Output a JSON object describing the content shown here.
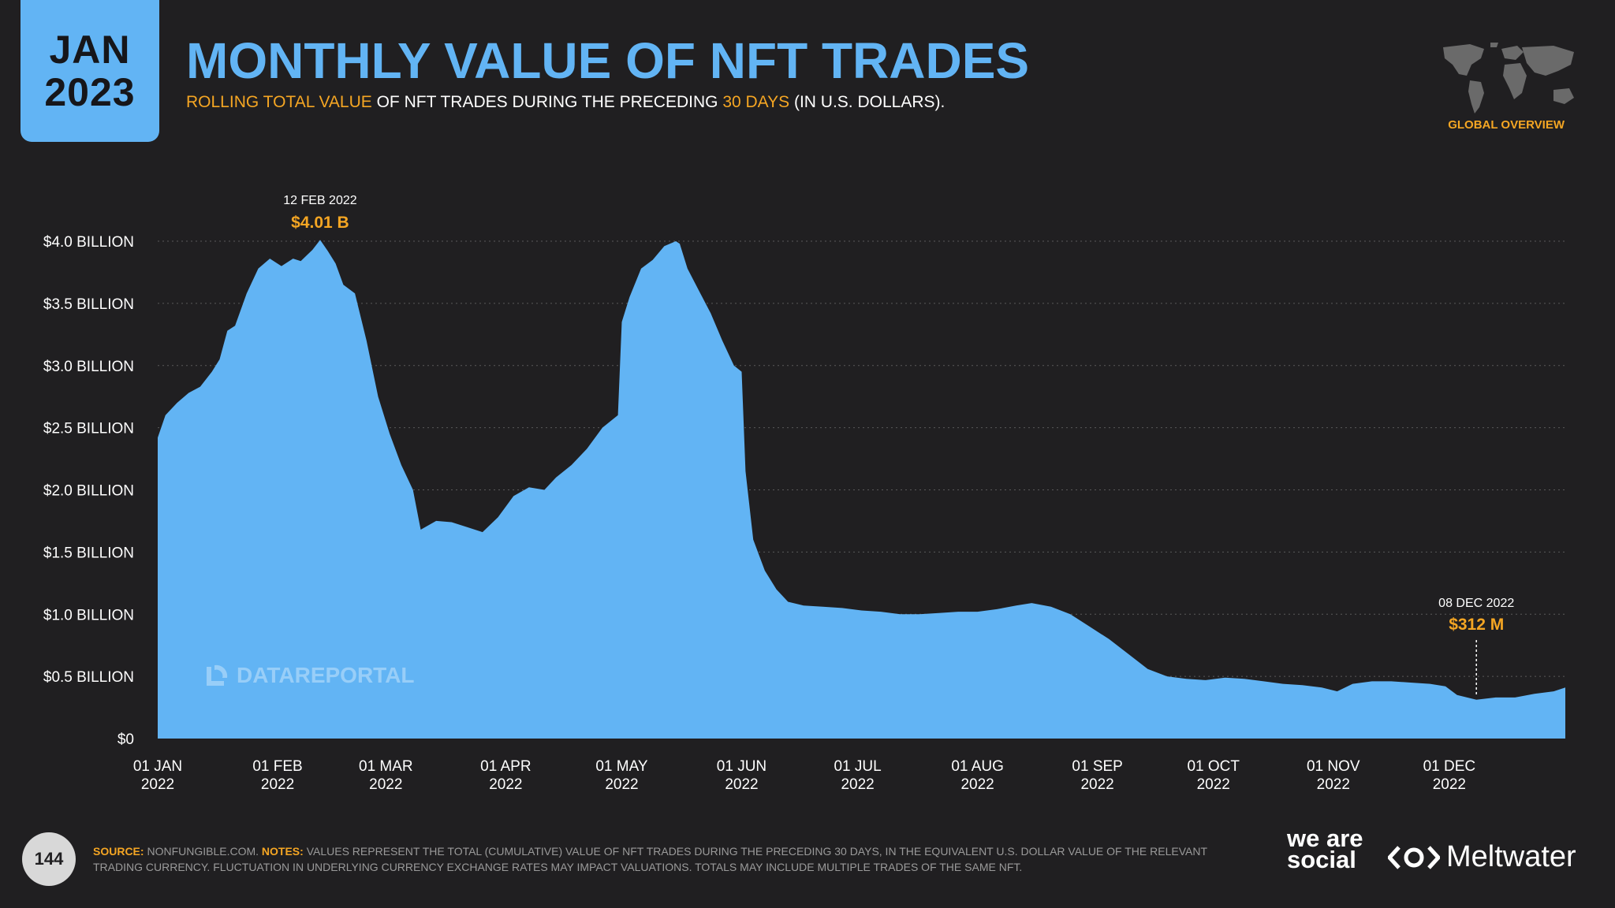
{
  "header": {
    "badge_month": "JAN",
    "badge_year": "2023",
    "title": "MONTHLY VALUE OF NFT TRADES",
    "subtitle_parts": [
      "ROLLING TOTAL VALUE",
      " OF NFT TRADES DURING THE PRECEDING ",
      "30 DAYS",
      " (IN U.S. DOLLARS)."
    ],
    "region_label": "GLOBAL OVERVIEW"
  },
  "watermark": "DATAREPORTAL",
  "footer": {
    "page_number": "144",
    "source_key": "SOURCE:",
    "source_text": " NONFUNGIBLE.COM. ",
    "notes_key": "NOTES:",
    "notes_text": " VALUES REPRESENT THE TOTAL (CUMULATIVE) VALUE OF NFT TRADES DURING THE PRECEDING 30 DAYS, IN THE EQUIVALENT U.S. DOLLAR VALUE OF THE RELEVANT TRADING CURRENCY. FLUCTUATION IN UNDERLYING CURRENCY EXCHANGE RATES MAY IMPACT VALUATIONS. TOTALS MAY INCLUDE MULTIPLE TRADES OF THE SAME NFT.",
    "brand_1": "we are social",
    "brand_2": "Meltwater"
  },
  "colors": {
    "background": "#201f21",
    "area": "#62b4f4",
    "accent": "#f5a623",
    "grid": "#5a5a5a"
  },
  "chart_data": {
    "type": "area",
    "title": "MONTHLY VALUE OF NFT TRADES",
    "ylabel": "",
    "xlabel": "",
    "ylim": [
      0,
      4.0
    ],
    "y_unit": "USD billion",
    "y_ticks": [
      {
        "value": 0,
        "label": "$0"
      },
      {
        "value": 0.5,
        "label": "$0.5 BILLION"
      },
      {
        "value": 1.0,
        "label": "$1.0 BILLION"
      },
      {
        "value": 1.5,
        "label": "$1.5 BILLION"
      },
      {
        "value": 2.0,
        "label": "$2.0 BILLION"
      },
      {
        "value": 2.5,
        "label": "$2.5 BILLION"
      },
      {
        "value": 3.0,
        "label": "$3.0 BILLION"
      },
      {
        "value": 3.5,
        "label": "$3.5 BILLION"
      },
      {
        "value": 4.0,
        "label": "$4.0 BILLION"
      }
    ],
    "x_range": [
      "2022-01-01",
      "2022-12-31"
    ],
    "x_ticks": [
      {
        "date": "2022-01-01",
        "line1": "01 JAN",
        "line2": "2022"
      },
      {
        "date": "2022-02-01",
        "line1": "01 FEB",
        "line2": "2022"
      },
      {
        "date": "2022-03-01",
        "line1": "01 MAR",
        "line2": "2022"
      },
      {
        "date": "2022-04-01",
        "line1": "01 APR",
        "line2": "2022"
      },
      {
        "date": "2022-05-01",
        "line1": "01 MAY",
        "line2": "2022"
      },
      {
        "date": "2022-06-01",
        "line1": "01 JUN",
        "line2": "2022"
      },
      {
        "date": "2022-07-01",
        "line1": "01 JUL",
        "line2": "2022"
      },
      {
        "date": "2022-08-01",
        "line1": "01 AUG",
        "line2": "2022"
      },
      {
        "date": "2022-09-01",
        "line1": "01 SEP",
        "line2": "2022"
      },
      {
        "date": "2022-10-01",
        "line1": "01 OCT",
        "line2": "2022"
      },
      {
        "date": "2022-11-01",
        "line1": "01 NOV",
        "line2": "2022"
      },
      {
        "date": "2022-12-01",
        "line1": "01 DEC",
        "line2": "2022"
      }
    ],
    "grid": true,
    "series": [
      {
        "points": [
          [
            "2022-01-01",
            2.42
          ],
          [
            "2022-01-03",
            2.6
          ],
          [
            "2022-01-06",
            2.7
          ],
          [
            "2022-01-09",
            2.78
          ],
          [
            "2022-01-12",
            2.83
          ],
          [
            "2022-01-15",
            2.95
          ],
          [
            "2022-01-17",
            3.05
          ],
          [
            "2022-01-19",
            3.28
          ],
          [
            "2022-01-21",
            3.32
          ],
          [
            "2022-01-24",
            3.58
          ],
          [
            "2022-01-27",
            3.78
          ],
          [
            "2022-01-30",
            3.86
          ],
          [
            "2022-02-02",
            3.8
          ],
          [
            "2022-02-05",
            3.86
          ],
          [
            "2022-02-07",
            3.84
          ],
          [
            "2022-02-10",
            3.93
          ],
          [
            "2022-02-12",
            4.01
          ],
          [
            "2022-02-14",
            3.92
          ],
          [
            "2022-02-16",
            3.82
          ],
          [
            "2022-02-18",
            3.65
          ],
          [
            "2022-02-21",
            3.58
          ],
          [
            "2022-02-24",
            3.2
          ],
          [
            "2022-02-27",
            2.75
          ],
          [
            "2022-03-02",
            2.45
          ],
          [
            "2022-03-05",
            2.2
          ],
          [
            "2022-03-08",
            2.0
          ],
          [
            "2022-03-10",
            1.68
          ],
          [
            "2022-03-14",
            1.75
          ],
          [
            "2022-03-18",
            1.74
          ],
          [
            "2022-03-22",
            1.7
          ],
          [
            "2022-03-26",
            1.66
          ],
          [
            "2022-03-30",
            1.78
          ],
          [
            "2022-04-03",
            1.95
          ],
          [
            "2022-04-07",
            2.02
          ],
          [
            "2022-04-11",
            2.0
          ],
          [
            "2022-04-14",
            2.1
          ],
          [
            "2022-04-18",
            2.2
          ],
          [
            "2022-04-22",
            2.33
          ],
          [
            "2022-04-26",
            2.5
          ],
          [
            "2022-04-30",
            2.6
          ],
          [
            "2022-05-01",
            3.35
          ],
          [
            "2022-05-03",
            3.55
          ],
          [
            "2022-05-06",
            3.78
          ],
          [
            "2022-05-09",
            3.85
          ],
          [
            "2022-05-12",
            3.96
          ],
          [
            "2022-05-15",
            4.0
          ],
          [
            "2022-05-16",
            3.98
          ],
          [
            "2022-05-18",
            3.78
          ],
          [
            "2022-05-21",
            3.6
          ],
          [
            "2022-05-24",
            3.42
          ],
          [
            "2022-05-27",
            3.2
          ],
          [
            "2022-05-30",
            3.0
          ],
          [
            "2022-06-01",
            2.95
          ],
          [
            "2022-06-02",
            2.15
          ],
          [
            "2022-06-04",
            1.6
          ],
          [
            "2022-06-07",
            1.35
          ],
          [
            "2022-06-10",
            1.2
          ],
          [
            "2022-06-13",
            1.1
          ],
          [
            "2022-06-17",
            1.07
          ],
          [
            "2022-06-22",
            1.06
          ],
          [
            "2022-06-27",
            1.05
          ],
          [
            "2022-07-02",
            1.03
          ],
          [
            "2022-07-07",
            1.02
          ],
          [
            "2022-07-12",
            1.0
          ],
          [
            "2022-07-17",
            1.0
          ],
          [
            "2022-07-22",
            1.01
          ],
          [
            "2022-07-27",
            1.02
          ],
          [
            "2022-08-01",
            1.02
          ],
          [
            "2022-08-06",
            1.04
          ],
          [
            "2022-08-11",
            1.07
          ],
          [
            "2022-08-15",
            1.09
          ],
          [
            "2022-08-20",
            1.06
          ],
          [
            "2022-08-25",
            1.0
          ],
          [
            "2022-08-30",
            0.9
          ],
          [
            "2022-09-04",
            0.8
          ],
          [
            "2022-09-09",
            0.68
          ],
          [
            "2022-09-14",
            0.56
          ],
          [
            "2022-09-19",
            0.5
          ],
          [
            "2022-09-24",
            0.48
          ],
          [
            "2022-09-29",
            0.47
          ],
          [
            "2022-10-04",
            0.49
          ],
          [
            "2022-10-09",
            0.48
          ],
          [
            "2022-10-14",
            0.46
          ],
          [
            "2022-10-19",
            0.44
          ],
          [
            "2022-10-24",
            0.43
          ],
          [
            "2022-10-29",
            0.41
          ],
          [
            "2022-11-02",
            0.38
          ],
          [
            "2022-11-06",
            0.44
          ],
          [
            "2022-11-11",
            0.46
          ],
          [
            "2022-11-16",
            0.46
          ],
          [
            "2022-11-21",
            0.45
          ],
          [
            "2022-11-26",
            0.44
          ],
          [
            "2022-11-30",
            0.42
          ],
          [
            "2022-12-03",
            0.35
          ],
          [
            "2022-12-08",
            0.312
          ],
          [
            "2022-12-13",
            0.33
          ],
          [
            "2022-12-18",
            0.33
          ],
          [
            "2022-12-23",
            0.36
          ],
          [
            "2022-12-28",
            0.38
          ],
          [
            "2022-12-31",
            0.41
          ]
        ]
      }
    ],
    "annotations": [
      {
        "date": "2022-02-12",
        "value": 4.01,
        "date_label": "12 FEB 2022",
        "value_label": "$4.01 B",
        "leader": false
      },
      {
        "date": "2022-12-08",
        "value": 0.312,
        "date_label": "08 DEC 2022",
        "value_label": "$312 M",
        "leader": true
      }
    ]
  }
}
